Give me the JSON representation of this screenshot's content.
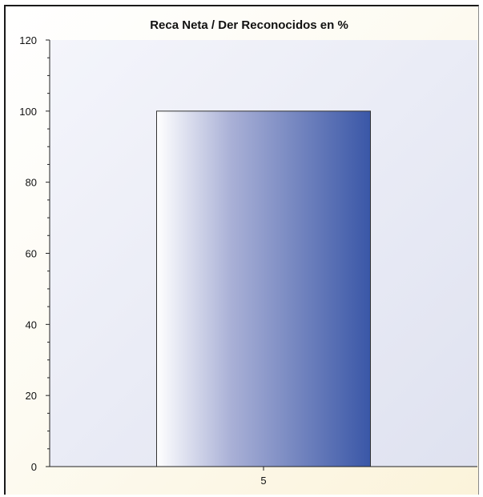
{
  "chart_data": {
    "type": "bar",
    "title": "Reca Neta / Der Reconocidos en %",
    "categories": [
      "5"
    ],
    "values": [
      100
    ],
    "ylim": [
      0,
      120
    ],
    "yticks": [
      0,
      20,
      40,
      60,
      80,
      100,
      120
    ],
    "xlabel": "",
    "ylabel": "",
    "grid": false,
    "legend": "none",
    "colors": {
      "bar_start": "#ffffff",
      "bar_end": "#3a57a7",
      "plot_bg_start": "#f4f5fb",
      "plot_bg_end": "#dfe2f0",
      "axis": "#222222"
    }
  }
}
